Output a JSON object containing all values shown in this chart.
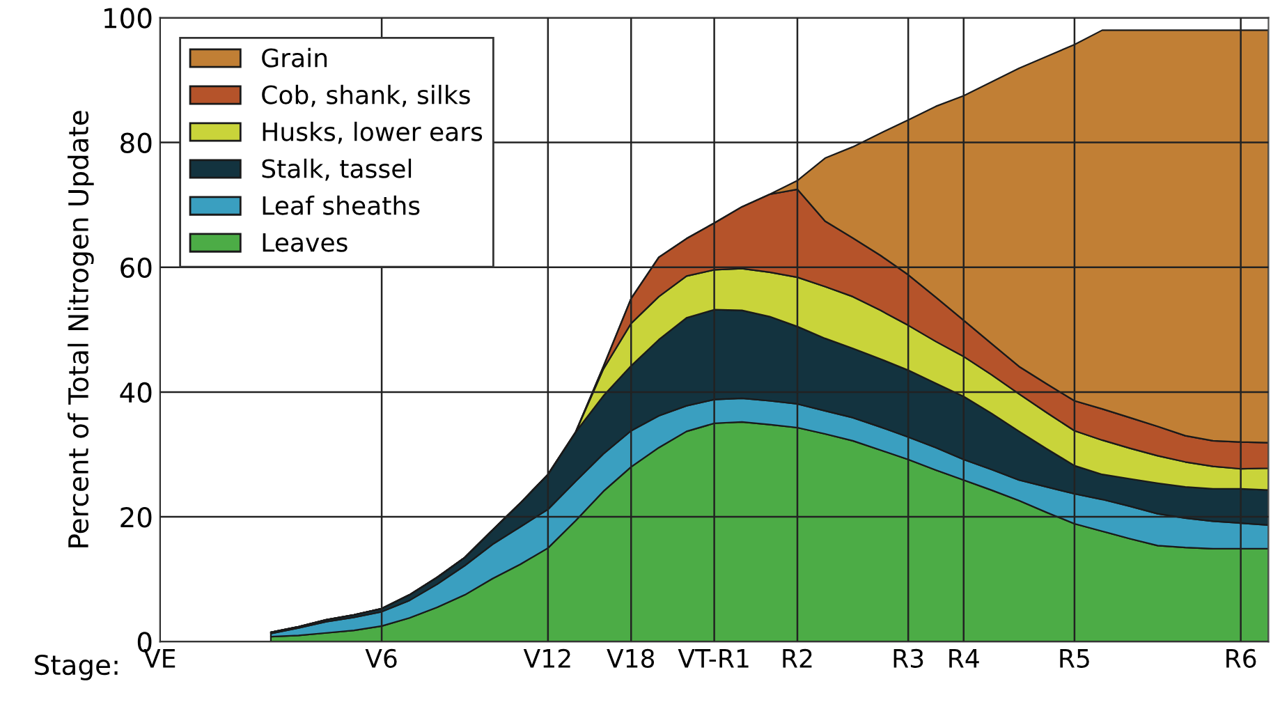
{
  "chart_data": {
    "type": "area",
    "stacked": true,
    "ylabel": "Percent of Total Nitrogen Update",
    "xlabel": "Stage:",
    "categories": [
      "VE",
      null,
      null,
      null,
      null,
      null,
      null,
      null,
      "V6",
      null,
      null,
      null,
      null,
      null,
      "V12",
      null,
      null,
      "V18",
      null,
      null,
      "VT-R1",
      null,
      null,
      "R2",
      null,
      null,
      null,
      "R3",
      null,
      "R4",
      null,
      null,
      null,
      "R5",
      null,
      null,
      null,
      null,
      null,
      "R6",
      null
    ],
    "series": [
      {
        "name": "Leaves",
        "color": "#4cac46",
        "values": [
          null,
          null,
          null,
          null,
          0.8,
          1.0,
          1.4,
          1.8,
          2.5,
          3.8,
          5.5,
          7.5,
          10.1,
          12.4,
          15.0,
          19.4,
          24.1,
          28.0,
          31.1,
          33.7,
          35.0,
          35.2,
          34.8,
          34.3,
          33.3,
          32.2,
          30.7,
          29.2,
          27.5,
          25.9,
          24.3,
          22.6,
          20.7,
          18.9,
          17.7,
          16.5,
          15.4,
          15.1,
          14.9,
          14.9,
          14.9
        ]
      },
      {
        "name": "Leaf sheaths",
        "color": "#3a9fc0",
        "values": [
          null,
          null,
          null,
          null,
          0.5,
          1.2,
          1.8,
          2.1,
          2.3,
          2.8,
          3.7,
          4.7,
          5.5,
          6.0,
          6.2,
          6.3,
          6.0,
          5.8,
          5.1,
          4.1,
          3.8,
          3.8,
          3.8,
          3.8,
          3.7,
          3.7,
          3.7,
          3.6,
          3.6,
          3.3,
          3.3,
          3.3,
          4.1,
          4.8,
          5.1,
          5.2,
          5.1,
          4.7,
          4.4,
          4.1,
          3.8
        ]
      },
      {
        "name": "Stalk, tassel",
        "color": "#13333f",
        "values": [
          null,
          null,
          null,
          null,
          0.2,
          0.2,
          0.3,
          0.4,
          0.5,
          0.9,
          1.1,
          1.3,
          2.3,
          3.8,
          5.6,
          7.9,
          9.3,
          10.4,
          12.2,
          14.1,
          14.4,
          14.1,
          13.5,
          12.4,
          11.6,
          11.1,
          10.9,
          10.7,
          10.3,
          10.1,
          9.0,
          7.8,
          6.1,
          4.5,
          4.0,
          4.4,
          4.9,
          5.0,
          5.2,
          5.5,
          5.6
        ]
      },
      {
        "name": "Husks, lower ears",
        "color": "#c9d43a",
        "values": [
          null,
          null,
          null,
          null,
          0,
          0,
          0,
          0,
          0,
          0,
          0,
          0,
          0,
          0,
          0,
          0,
          4.3,
          6.8,
          6.9,
          6.7,
          6.4,
          6.7,
          7.1,
          7.9,
          8.3,
          8.3,
          7.8,
          7.2,
          6.7,
          6.4,
          6.2,
          6.0,
          5.8,
          5.6,
          5.5,
          4.9,
          4.4,
          4.0,
          3.6,
          3.2,
          3.5
        ]
      },
      {
        "name": "Cob, shank, silks",
        "color": "#b5532a",
        "values": [
          null,
          null,
          null,
          null,
          0,
          0,
          0,
          0,
          0,
          0,
          0,
          0,
          0,
          0,
          0,
          0,
          0.4,
          4.0,
          6.3,
          6.0,
          7.5,
          9.9,
          12.5,
          14.1,
          10.5,
          9.4,
          8.8,
          8.1,
          7.1,
          5.8,
          5.0,
          4.4,
          4.6,
          4.8,
          5.0,
          4.9,
          4.7,
          4.2,
          4.1,
          4.3,
          4.1
        ]
      },
      {
        "name": "Grain",
        "color": "#c17f35",
        "values": [
          null,
          null,
          null,
          null,
          0,
          0,
          0,
          0,
          0,
          0,
          0,
          0,
          0,
          0,
          0,
          0,
          0,
          0,
          0,
          0,
          0,
          0,
          0,
          1.4,
          10.1,
          14.6,
          19.6,
          24.8,
          30.6,
          36.0,
          41.9,
          47.8,
          52.5,
          57.1,
          60.7,
          62.1,
          63.5,
          65.0,
          65.8,
          66.0,
          66.1
        ]
      }
    ],
    "ylim": [
      0,
      100
    ],
    "yticks": [
      0,
      20,
      40,
      60,
      80,
      100
    ],
    "grid": true,
    "legend": "top left"
  }
}
